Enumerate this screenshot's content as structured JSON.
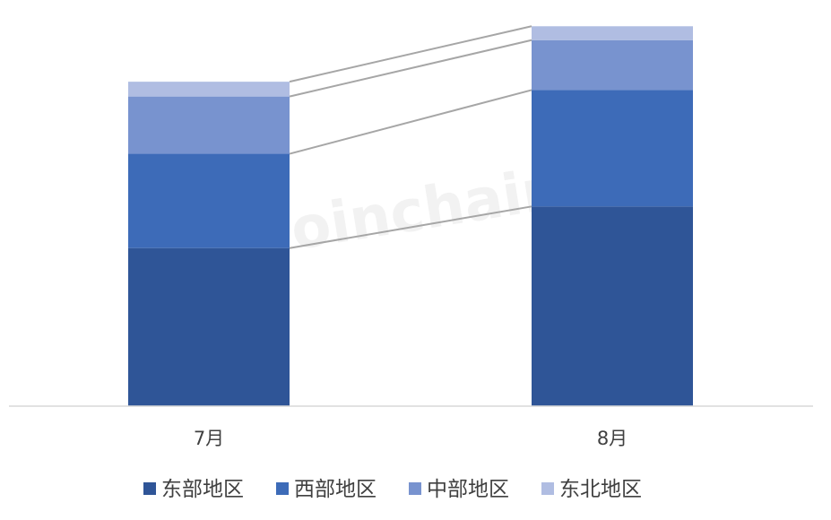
{
  "chart_data": {
    "type": "bar",
    "stacked": true,
    "categories": [
      "7月",
      "8月"
    ],
    "series": [
      {
        "name": "东部地区",
        "values": [
          171,
          216
        ],
        "color": "#2F5597"
      },
      {
        "name": "西部地区",
        "values": [
          102,
          126
        ],
        "color": "#3D6BB8"
      },
      {
        "name": "中部地区",
        "values": [
          62,
          54
        ],
        "color": "#7893CF"
      },
      {
        "name": "东北地区",
        "values": [
          16,
          15
        ],
        "color": "#B0BDE2"
      }
    ],
    "ylim": [
      0,
      420
    ],
    "grid": false,
    "connector_lines": true,
    "legend_position": "bottom"
  },
  "watermark": "Joinchain"
}
